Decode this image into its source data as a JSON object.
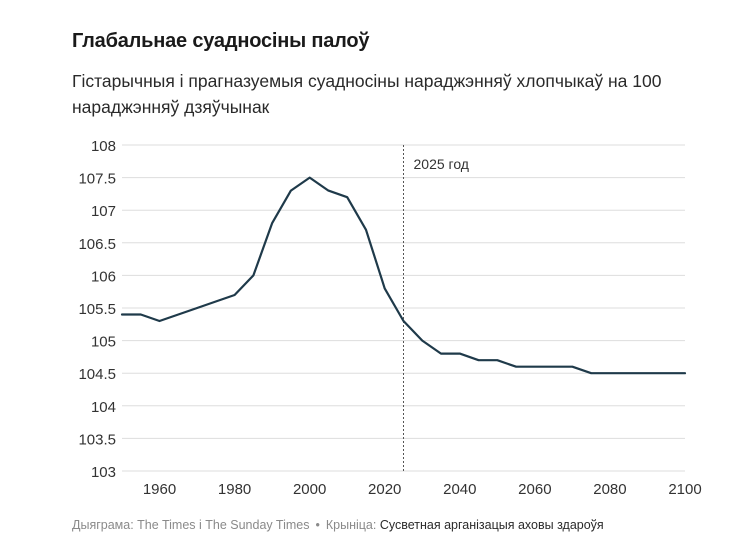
{
  "title": "Глабальнае суадносіны палоў",
  "subtitle": "Гістарычныя і прагназуемыя суадносіны нараджэнняў хлопчыкаў на 100 нараджэнняў дзяўчынак",
  "footer": {
    "credit": "Дыяграма: The Times і The Sunday Times",
    "separator": "•",
    "source_label": "Крыніца:",
    "source_name": "Сусветная арганізацыя аховы здароўя"
  },
  "colors": {
    "line": "#1f3a4a",
    "grid": "#dddddd",
    "text": "#333333"
  },
  "chart_data": {
    "type": "line",
    "title": "Глабальнае суадносіны палоў",
    "xlabel": "",
    "ylabel": "",
    "xlim": [
      1950,
      2100
    ],
    "ylim": [
      103,
      108
    ],
    "xticks": [
      1960,
      1980,
      2000,
      2020,
      2040,
      2060,
      2080,
      2100
    ],
    "yticks": [
      103,
      103.5,
      104,
      104.5,
      105,
      105.5,
      106,
      106.5,
      107,
      107.5,
      108
    ],
    "ytick_labels": [
      "103",
      "103.5",
      "104",
      "104.5",
      "105",
      "105.5",
      "106",
      "106.5",
      "107",
      "107.5",
      "108"
    ],
    "grid": true,
    "annotations": [
      {
        "x": 2025,
        "label": "2025 год",
        "style": "dotted-vertical"
      }
    ],
    "series": [
      {
        "x": [
          1950,
          1955,
          1960,
          1965,
          1970,
          1975,
          1980,
          1985,
          1990,
          1995,
          2000,
          2005,
          2010,
          2015,
          2020,
          2025,
          2030,
          2035,
          2040,
          2045,
          2050,
          2055,
          2060,
          2065,
          2070,
          2075,
          2080,
          2085,
          2090,
          2095,
          2100
        ],
        "values": [
          105.4,
          105.4,
          105.3,
          105.4,
          105.5,
          105.6,
          105.7,
          106.0,
          106.8,
          107.3,
          107.5,
          107.3,
          107.2,
          106.7,
          105.8,
          105.3,
          105.0,
          104.8,
          104.8,
          104.7,
          104.7,
          104.6,
          104.6,
          104.6,
          104.6,
          104.5,
          104.5,
          104.5,
          104.5,
          104.5,
          104.5
        ]
      }
    ]
  }
}
